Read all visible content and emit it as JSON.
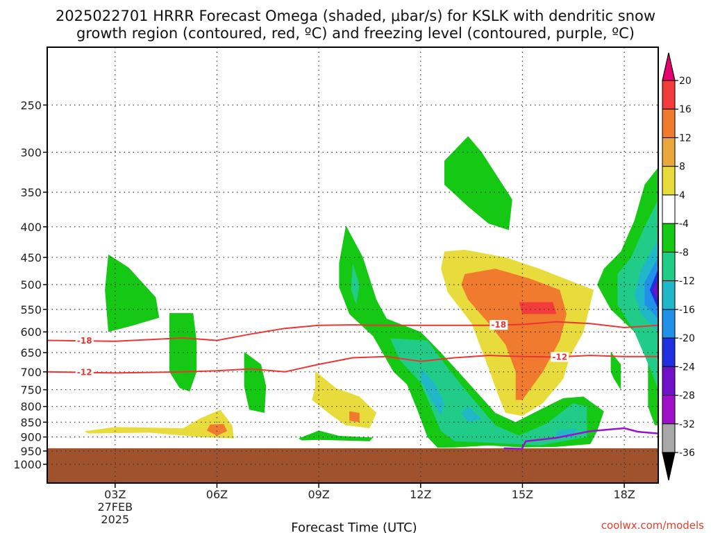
{
  "chart_data": {
    "type": "heatmap",
    "title_line1": "2025022701 HRRR Forecast Omega (shaded, μbar/s) for KSLK with dendritic snow",
    "title_line2": "growth region (contoured, red, ºC) and freezing level (contoured, purple, ºC)",
    "xlabel": "Forecast Time (UTC)",
    "x_ticks": [
      {
        "hour": 3,
        "label": "03Z",
        "sub": [
          "27FEB",
          "2025"
        ]
      },
      {
        "hour": 6,
        "label": "06Z"
      },
      {
        "hour": 9,
        "label": "09Z"
      },
      {
        "hour": 12,
        "label": "12Z"
      },
      {
        "hour": 15,
        "label": "15Z"
      },
      {
        "hour": 18,
        "label": "18Z"
      }
    ],
    "xlim": [
      1,
      19
    ],
    "y_scale": "log",
    "ylim": [
      1075,
      200
    ],
    "y_ticks": [
      250,
      300,
      350,
      400,
      450,
      500,
      550,
      600,
      650,
      700,
      750,
      800,
      850,
      900,
      950,
      1000
    ],
    "grid": true,
    "colorbar": {
      "labels": [
        "20",
        "16",
        "12",
        "8",
        "4",
        "-4",
        "-8",
        "-12",
        "-16",
        "-20",
        "-24",
        "-28",
        "-32",
        "-36"
      ],
      "colors": [
        "#e8006e",
        "#f23b3b",
        "#f07a2e",
        "#e8a83a",
        "#e8dc3c",
        "#ffffff",
        "#14c814",
        "#20cc88",
        "#20b8c8",
        "#2090e8",
        "#2030e0",
        "#7010c8",
        "#a010c8",
        "#a8a8a8",
        "#000000"
      ]
    },
    "contours": [
      {
        "level": -18,
        "color": "#ee3333",
        "points": [
          [
            1,
            620
          ],
          [
            3,
            622
          ],
          [
            5,
            614
          ],
          [
            6,
            620
          ],
          [
            7,
            605
          ],
          [
            8,
            592
          ],
          [
            9,
            585
          ],
          [
            10,
            584
          ],
          [
            11,
            585
          ],
          [
            12,
            585
          ],
          [
            13,
            585
          ],
          [
            14,
            585
          ],
          [
            15,
            583
          ],
          [
            16,
            577
          ],
          [
            17,
            581
          ],
          [
            18,
            590
          ],
          [
            19,
            585
          ]
        ],
        "labels": [
          {
            "t": 2.1,
            "p": 621
          },
          {
            "t": 14.3,
            "p": 584
          }
        ]
      },
      {
        "level": -12,
        "color": "#ee3333",
        "points": [
          [
            1,
            700
          ],
          [
            3,
            703
          ],
          [
            5,
            700
          ],
          [
            6,
            697
          ],
          [
            7,
            692
          ],
          [
            8,
            700
          ],
          [
            9,
            680
          ],
          [
            10,
            663
          ],
          [
            11,
            660
          ],
          [
            12,
            672
          ],
          [
            13,
            663
          ],
          [
            14,
            657
          ],
          [
            15,
            660
          ],
          [
            16,
            661
          ],
          [
            17,
            657
          ],
          [
            18,
            660
          ],
          [
            19,
            660
          ]
        ],
        "labels": [
          {
            "t": 2.1,
            "p": 701
          },
          {
            "t": 16.1,
            "p": 661
          }
        ]
      },
      {
        "level": 0,
        "color": "#9a10d0",
        "points": [
          [
            14.45,
            940
          ],
          [
            15,
            942
          ],
          [
            15,
            937
          ],
          [
            15.1,
            915
          ],
          [
            16,
            903
          ],
          [
            17,
            880
          ],
          [
            18,
            870
          ],
          [
            18.4,
            882
          ],
          [
            19,
            888
          ]
        ],
        "labels": []
      }
    ],
    "shaded_regions": [
      {
        "value": -8,
        "points": [
          [
            2.8,
            600
          ],
          [
            2.7,
            510
          ],
          [
            2.8,
            445
          ],
          [
            3.4,
            468
          ],
          [
            4.2,
            525
          ],
          [
            4.3,
            568
          ],
          [
            3.5,
            586
          ]
        ]
      },
      {
        "value": -8,
        "points": [
          [
            4.6,
            558
          ],
          [
            5.3,
            558
          ],
          [
            5.4,
            620
          ],
          [
            5.4,
            700
          ],
          [
            5.2,
            755
          ],
          [
            4.9,
            745
          ],
          [
            4.6,
            700
          ]
        ]
      },
      {
        "value": -8,
        "points": [
          [
            6.8,
            648
          ],
          [
            7.3,
            680
          ],
          [
            7.45,
            740
          ],
          [
            7.4,
            820
          ],
          [
            6.95,
            810
          ],
          [
            6.8,
            740
          ]
        ]
      },
      {
        "value": -8,
        "points": [
          [
            8.4,
            905
          ],
          [
            9,
            878
          ],
          [
            9.6,
            896
          ],
          [
            10.6,
            902
          ],
          [
            10.5,
            915
          ],
          [
            9,
            910
          ],
          [
            8.5,
            912
          ]
        ]
      },
      {
        "value": -8,
        "points": [
          [
            9.8,
            398
          ],
          [
            10.3,
            450
          ],
          [
            10.7,
            530
          ],
          [
            11,
            570
          ],
          [
            12,
            600
          ],
          [
            12.6,
            650
          ],
          [
            13.5,
            740
          ],
          [
            14.2,
            820
          ],
          [
            14.8,
            850
          ],
          [
            15.7,
            800
          ],
          [
            16.2,
            775
          ],
          [
            16.8,
            770
          ],
          [
            17.4,
            815
          ],
          [
            17.2,
            880
          ],
          [
            17,
            925
          ],
          [
            16,
            935
          ],
          [
            15,
            937
          ],
          [
            14,
            930
          ],
          [
            13,
            937
          ],
          [
            12.5,
            938
          ],
          [
            12.2,
            900
          ],
          [
            11.9,
            810
          ],
          [
            11.6,
            735
          ],
          [
            11.2,
            700
          ],
          [
            10.6,
            610
          ],
          [
            9.9,
            560
          ],
          [
            9.6,
            505
          ],
          [
            9.6,
            460
          ]
        ]
      },
      {
        "value": -8,
        "points": [
          [
            13.4,
            282
          ],
          [
            13.8,
            300
          ],
          [
            14.7,
            360
          ],
          [
            14.6,
            405
          ],
          [
            14,
            395
          ],
          [
            13.4,
            370
          ],
          [
            12.7,
            340
          ],
          [
            12.7,
            310
          ]
        ]
      },
      {
        "value": -8,
        "points": [
          [
            19,
            318
          ],
          [
            18.6,
            340
          ],
          [
            18.3,
            390
          ],
          [
            17.9,
            440
          ],
          [
            17.4,
            470
          ],
          [
            17.2,
            500
          ],
          [
            17.6,
            550
          ],
          [
            18.3,
            600
          ],
          [
            18.7,
            650
          ],
          [
            18.7,
            800
          ],
          [
            18.9,
            860
          ],
          [
            19,
            860
          ]
        ]
      },
      {
        "value": -8,
        "points": [
          [
            17.6,
            648
          ],
          [
            17.9,
            680
          ],
          [
            17.9,
            750
          ],
          [
            17.7,
            720
          ],
          [
            17.6,
            700
          ]
        ]
      },
      {
        "value": 4,
        "points": [
          [
            2.1,
            880
          ],
          [
            3,
            866
          ],
          [
            5,
            870
          ],
          [
            5.5,
            838
          ],
          [
            6.1,
            810
          ],
          [
            6.45,
            860
          ],
          [
            6.5,
            905
          ],
          [
            5.5,
            900
          ],
          [
            4,
            885
          ],
          [
            2.2,
            888
          ]
        ]
      },
      {
        "value": 4,
        "points": [
          [
            8.9,
            698
          ],
          [
            9.5,
            745
          ],
          [
            10.2,
            770
          ],
          [
            10.7,
            820
          ],
          [
            10.5,
            870
          ],
          [
            9.8,
            860
          ],
          [
            9.4,
            830
          ],
          [
            8.8,
            780
          ],
          [
            8.9,
            740
          ]
        ]
      },
      {
        "value": 4,
        "points": [
          [
            12.7,
            440
          ],
          [
            13.3,
            437
          ],
          [
            14.5,
            450
          ],
          [
            15.5,
            470
          ],
          [
            16.5,
            495
          ],
          [
            17.1,
            510
          ],
          [
            16.8,
            600
          ],
          [
            16.4,
            660
          ],
          [
            16.2,
            720
          ],
          [
            15.6,
            790
          ],
          [
            15,
            830
          ],
          [
            14.5,
            820
          ],
          [
            14.3,
            770
          ],
          [
            14,
            690
          ],
          [
            13.5,
            580
          ],
          [
            12.8,
            515
          ],
          [
            12.6,
            470
          ]
        ]
      },
      {
        "value": 12,
        "points": [
          [
            13.3,
            480
          ],
          [
            14.2,
            470
          ],
          [
            15.2,
            488
          ],
          [
            16.1,
            510
          ],
          [
            16.3,
            560
          ],
          [
            16.1,
            620
          ],
          [
            15.6,
            700
          ],
          [
            15,
            780
          ],
          [
            14.8,
            780
          ],
          [
            14.8,
            700
          ],
          [
            14.5,
            630
          ],
          [
            14,
            580
          ],
          [
            13.4,
            530
          ],
          [
            13.2,
            500
          ]
        ]
      },
      {
        "value": 16,
        "points": [
          [
            14.9,
            535
          ],
          [
            15.9,
            535
          ],
          [
            16,
            560
          ],
          [
            15,
            560
          ]
        ]
      },
      {
        "value": 12,
        "points": [
          [
            5.8,
            858
          ],
          [
            6.2,
            856
          ],
          [
            6.3,
            880
          ],
          [
            6,
            895
          ],
          [
            5.7,
            878
          ]
        ]
      },
      {
        "value": 12,
        "points": [
          [
            9.9,
            815
          ],
          [
            10.2,
            820
          ],
          [
            10.2,
            850
          ],
          [
            9.9,
            845
          ]
        ]
      },
      {
        "value": -12,
        "points": [
          [
            10,
            460
          ],
          [
            10.2,
            500
          ],
          [
            10.1,
            540
          ],
          [
            9.95,
            510
          ]
        ]
      },
      {
        "value": -12,
        "points": [
          [
            11.1,
            615
          ],
          [
            12.2,
            620
          ],
          [
            12.8,
            690
          ],
          [
            13.4,
            760
          ],
          [
            14.2,
            860
          ],
          [
            14.9,
            895
          ],
          [
            15.7,
            855
          ],
          [
            16.5,
            790
          ],
          [
            16.9,
            800
          ],
          [
            16.9,
            900
          ],
          [
            15.5,
            930
          ],
          [
            14,
            920
          ],
          [
            13,
            915
          ],
          [
            12.6,
            880
          ],
          [
            12.3,
            800
          ],
          [
            12,
            730
          ],
          [
            11.4,
            670
          ]
        ]
      },
      {
        "value": -16,
        "points": [
          [
            12,
            690
          ],
          [
            12.4,
            730
          ],
          [
            12.7,
            790
          ],
          [
            12.6,
            830
          ],
          [
            12.2,
            760
          ],
          [
            12,
            720
          ]
        ]
      },
      {
        "value": -16,
        "points": [
          [
            13.4,
            800
          ],
          [
            13.8,
            840
          ],
          [
            13.4,
            850
          ],
          [
            13.2,
            820
          ]
        ]
      },
      {
        "value": -16,
        "points": [
          [
            16,
            880
          ],
          [
            16.6,
            870
          ],
          [
            16.5,
            900
          ],
          [
            16,
            900
          ]
        ]
      },
      {
        "value": -12,
        "points": [
          [
            19,
            360
          ],
          [
            18.6,
            400
          ],
          [
            18.2,
            450
          ],
          [
            17.8,
            480
          ],
          [
            17.8,
            540
          ],
          [
            18.3,
            600
          ],
          [
            18.8,
            700
          ],
          [
            19,
            750
          ]
        ]
      },
      {
        "value": -16,
        "points": [
          [
            19,
            420
          ],
          [
            18.5,
            470
          ],
          [
            18.3,
            520
          ],
          [
            18.5,
            560
          ],
          [
            19,
            600
          ]
        ]
      },
      {
        "value": -20,
        "points": [
          [
            19,
            450
          ],
          [
            18.6,
            495
          ],
          [
            18.6,
            540
          ],
          [
            19,
            570
          ]
        ]
      },
      {
        "value": -24,
        "points": [
          [
            19,
            470
          ],
          [
            18.75,
            510
          ],
          [
            19,
            550
          ]
        ]
      },
      {
        "value": -28,
        "points": [
          [
            19,
            485
          ],
          [
            18.85,
            512
          ],
          [
            19,
            535
          ]
        ]
      }
    ],
    "ground_level_hpa": 940,
    "ground_color": "#a0522d"
  },
  "credit": "coolwx.com/models"
}
